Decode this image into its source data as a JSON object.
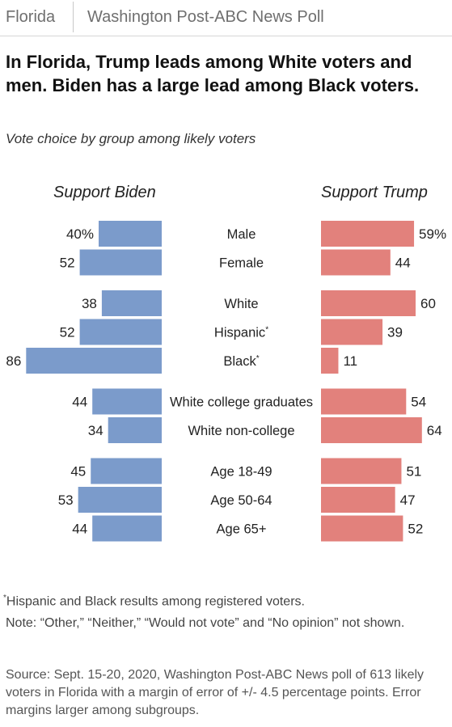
{
  "header": {
    "tag": "Florida",
    "poll_name": "Washington Post-ABC News Poll"
  },
  "headline": "In Florida, Trump leads among White voters and men. Biden has a large lead among Black voters.",
  "subtitle": "Vote choice by group among likely voters",
  "chart_data": {
    "type": "bar",
    "orientation": "horizontal-diverging",
    "columns": {
      "left": "Support Biden",
      "right": "Support Trump"
    },
    "categories": [
      "Male",
      "Female",
      "White",
      "Hispanic",
      "Black",
      "White college graduates",
      "White non-college",
      "Age 18-49",
      "Age 50-64",
      "Age 65+"
    ],
    "asterisked": [
      false,
      false,
      false,
      true,
      true,
      false,
      false,
      false,
      false,
      false
    ],
    "groups": [
      [
        0,
        1
      ],
      [
        2,
        3,
        4
      ],
      [
        5,
        6
      ],
      [
        7,
        8,
        9
      ]
    ],
    "series": [
      {
        "name": "Support Biden",
        "color": "#7b9bcb",
        "values": [
          40,
          52,
          38,
          52,
          86,
          44,
          34,
          45,
          53,
          44
        ]
      },
      {
        "name": "Support Trump",
        "color": "#e2817c",
        "values": [
          59,
          44,
          60,
          39,
          11,
          54,
          64,
          51,
          47,
          52
        ]
      }
    ],
    "first_label_suffix": "%",
    "value_axis": "unlabeled"
  },
  "footnote": {
    "marker": "*",
    "text": "Hispanic and Black results among registered voters."
  },
  "note": "Note: “Other,” “Neither,” “Would not vote” and “No opinion” not shown.",
  "source": "Source: Sept. 15-20, 2020, Washington Post-ABC News poll of 613 likely voters in Florida with a margin of error of +/- 4.5 percentage points. Error margins larger among subgroups."
}
